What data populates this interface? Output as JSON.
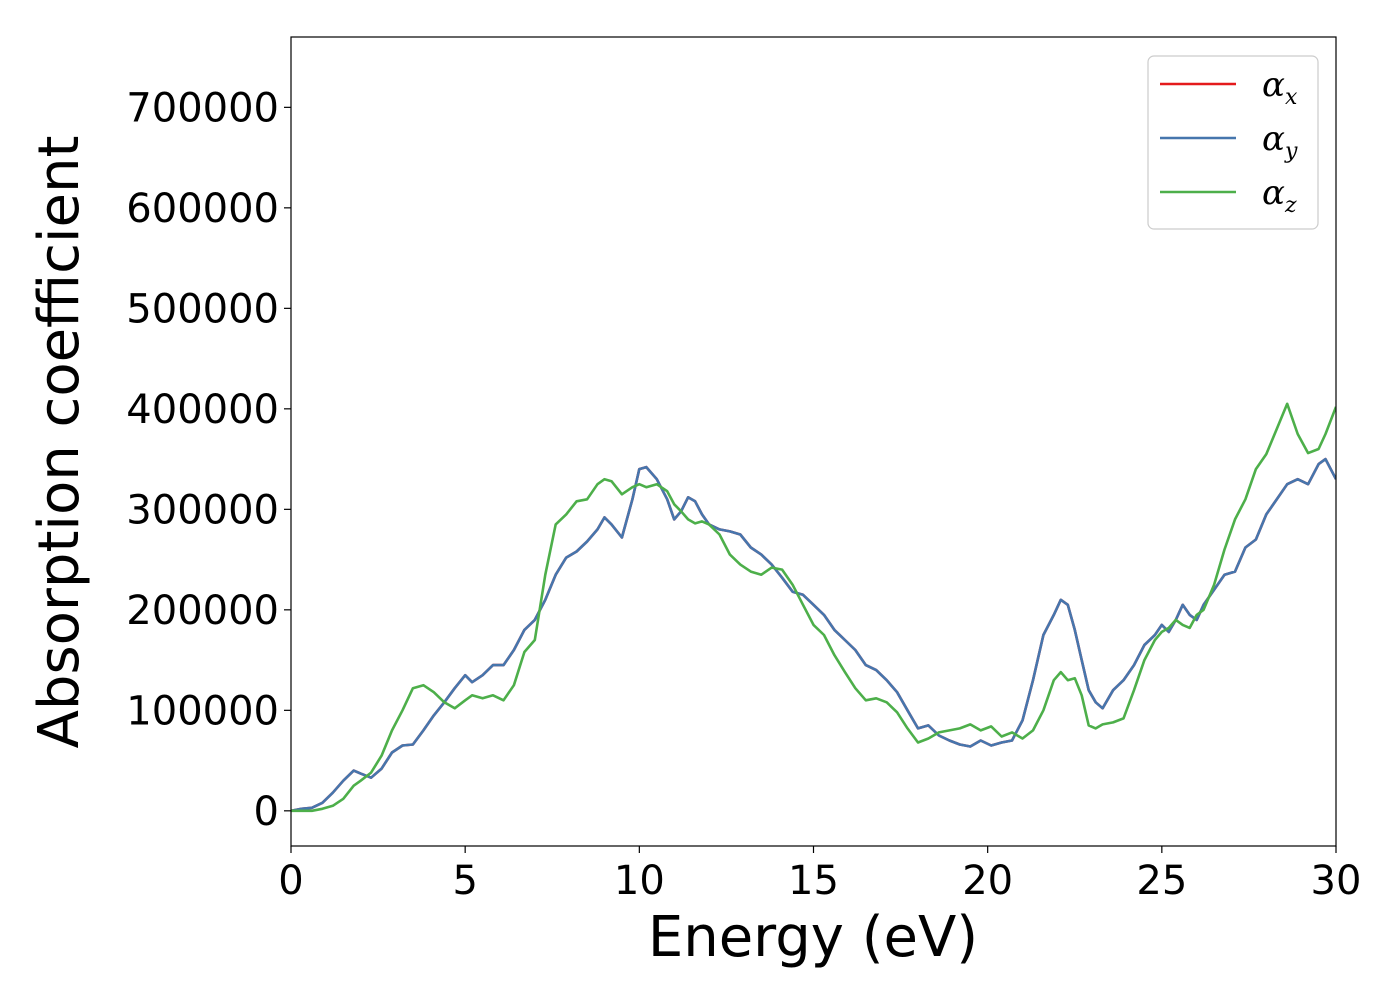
{
  "chart_data": {
    "type": "line",
    "title": "",
    "xlabel": "Energy (eV)",
    "ylabel": "Absorption coefficient",
    "xlim": [
      0,
      30
    ],
    "ylim": [
      -35000,
      770000
    ],
    "xticks": [
      0,
      5,
      10,
      15,
      20,
      25,
      30
    ],
    "yticks": [
      0,
      100000,
      200000,
      300000,
      400000,
      500000,
      600000,
      700000
    ],
    "grid": false,
    "legend_position": "top-right",
    "series": [
      {
        "name": "α_x",
        "legend_main": "α",
        "legend_sub": "x",
        "color": "#e41a1c",
        "x": [
          0,
          0.3,
          0.6,
          0.9,
          1.2,
          1.5,
          1.8,
          2.0,
          2.3,
          2.6,
          2.9,
          3.2,
          3.5,
          3.8,
          4.1,
          4.4,
          4.7,
          5.0,
          5.2,
          5.5,
          5.8,
          6.1,
          6.4,
          6.7,
          7.0,
          7.3,
          7.6,
          7.9,
          8.2,
          8.5,
          8.8,
          9.0,
          9.2,
          9.5,
          9.8,
          10.0,
          10.2,
          10.5,
          10.8,
          11.0,
          11.2,
          11.4,
          11.6,
          11.8,
          12.0,
          12.3,
          12.6,
          12.9,
          13.2,
          13.5,
          13.8,
          14.1,
          14.4,
          14.7,
          15.0,
          15.3,
          15.6,
          15.9,
          16.2,
          16.5,
          16.8,
          17.1,
          17.4,
          17.7,
          18.0,
          18.3,
          18.6,
          18.9,
          19.2,
          19.5,
          19.8,
          20.1,
          20.4,
          20.7,
          21.0,
          21.3,
          21.6,
          21.9,
          22.1,
          22.3,
          22.5,
          22.7,
          22.9,
          23.1,
          23.3,
          23.6,
          23.9,
          24.2,
          24.5,
          24.8,
          25.0,
          25.2,
          25.4,
          25.6,
          25.8,
          26.0,
          26.2,
          26.5,
          26.8,
          27.1,
          27.4,
          27.7,
          28.0,
          28.3,
          28.6,
          28.9,
          29.2,
          29.5,
          29.7,
          30.0
        ],
        "y": [
          0,
          2000,
          3000,
          8000,
          18000,
          30000,
          40000,
          37000,
          33000,
          42000,
          58000,
          65000,
          66000,
          80000,
          95000,
          108000,
          122000,
          135000,
          128000,
          135000,
          145000,
          145000,
          160000,
          180000,
          190000,
          210000,
          235000,
          252000,
          258000,
          268000,
          280000,
          292000,
          285000,
          272000,
          310000,
          340000,
          342000,
          330000,
          310000,
          290000,
          298000,
          312000,
          308000,
          295000,
          285000,
          280000,
          278000,
          275000,
          262000,
          255000,
          245000,
          232000,
          218000,
          215000,
          205000,
          195000,
          180000,
          170000,
          160000,
          145000,
          140000,
          130000,
          118000,
          100000,
          82000,
          85000,
          75000,
          70000,
          66000,
          64000,
          70000,
          65000,
          68000,
          70000,
          90000,
          130000,
          175000,
          195000,
          210000,
          205000,
          180000,
          150000,
          120000,
          108000,
          102000,
          120000,
          130000,
          145000,
          165000,
          175000,
          185000,
          178000,
          190000,
          205000,
          195000,
          190000,
          205000,
          220000,
          235000,
          238000,
          262000,
          270000,
          295000,
          310000,
          325000,
          330000,
          325000,
          345000,
          350000,
          330000
        ]
      },
      {
        "name": "α_y",
        "legend_main": "α",
        "legend_sub": "y",
        "color": "#4676ad",
        "x": [
          0,
          0.3,
          0.6,
          0.9,
          1.2,
          1.5,
          1.8,
          2.0,
          2.3,
          2.6,
          2.9,
          3.2,
          3.5,
          3.8,
          4.1,
          4.4,
          4.7,
          5.0,
          5.2,
          5.5,
          5.8,
          6.1,
          6.4,
          6.7,
          7.0,
          7.3,
          7.6,
          7.9,
          8.2,
          8.5,
          8.8,
          9.0,
          9.2,
          9.5,
          9.8,
          10.0,
          10.2,
          10.5,
          10.8,
          11.0,
          11.2,
          11.4,
          11.6,
          11.8,
          12.0,
          12.3,
          12.6,
          12.9,
          13.2,
          13.5,
          13.8,
          14.1,
          14.4,
          14.7,
          15.0,
          15.3,
          15.6,
          15.9,
          16.2,
          16.5,
          16.8,
          17.1,
          17.4,
          17.7,
          18.0,
          18.3,
          18.6,
          18.9,
          19.2,
          19.5,
          19.8,
          20.1,
          20.4,
          20.7,
          21.0,
          21.3,
          21.6,
          21.9,
          22.1,
          22.3,
          22.5,
          22.7,
          22.9,
          23.1,
          23.3,
          23.6,
          23.9,
          24.2,
          24.5,
          24.8,
          25.0,
          25.2,
          25.4,
          25.6,
          25.8,
          26.0,
          26.2,
          26.5,
          26.8,
          27.1,
          27.4,
          27.7,
          28.0,
          28.3,
          28.6,
          28.9,
          29.2,
          29.5,
          29.7,
          30.0
        ],
        "y": [
          0,
          2000,
          3000,
          8000,
          18000,
          30000,
          40000,
          37000,
          33000,
          42000,
          58000,
          65000,
          66000,
          80000,
          95000,
          108000,
          122000,
          135000,
          128000,
          135000,
          145000,
          145000,
          160000,
          180000,
          190000,
          210000,
          235000,
          252000,
          258000,
          268000,
          280000,
          292000,
          285000,
          272000,
          310000,
          340000,
          342000,
          330000,
          310000,
          290000,
          298000,
          312000,
          308000,
          295000,
          285000,
          280000,
          278000,
          275000,
          262000,
          255000,
          245000,
          232000,
          218000,
          215000,
          205000,
          195000,
          180000,
          170000,
          160000,
          145000,
          140000,
          130000,
          118000,
          100000,
          82000,
          85000,
          75000,
          70000,
          66000,
          64000,
          70000,
          65000,
          68000,
          70000,
          90000,
          130000,
          175000,
          195000,
          210000,
          205000,
          180000,
          150000,
          120000,
          108000,
          102000,
          120000,
          130000,
          145000,
          165000,
          175000,
          185000,
          178000,
          190000,
          205000,
          195000,
          190000,
          205000,
          220000,
          235000,
          238000,
          262000,
          270000,
          295000,
          310000,
          325000,
          330000,
          325000,
          345000,
          350000,
          330000
        ]
      },
      {
        "name": "α_z",
        "legend_main": "α",
        "legend_sub": "z",
        "color": "#4daf4a",
        "x": [
          0,
          0.3,
          0.6,
          0.9,
          1.2,
          1.5,
          1.8,
          2.0,
          2.3,
          2.6,
          2.9,
          3.2,
          3.5,
          3.8,
          4.1,
          4.4,
          4.7,
          5.0,
          5.2,
          5.5,
          5.8,
          6.1,
          6.4,
          6.7,
          7.0,
          7.3,
          7.6,
          7.9,
          8.2,
          8.5,
          8.8,
          9.0,
          9.2,
          9.5,
          9.8,
          10.0,
          10.2,
          10.5,
          10.8,
          11.0,
          11.2,
          11.4,
          11.6,
          11.8,
          12.0,
          12.3,
          12.6,
          12.9,
          13.2,
          13.5,
          13.8,
          14.1,
          14.4,
          14.7,
          15.0,
          15.3,
          15.6,
          15.9,
          16.2,
          16.5,
          16.8,
          17.1,
          17.4,
          17.7,
          18.0,
          18.3,
          18.6,
          18.9,
          19.2,
          19.5,
          19.8,
          20.1,
          20.4,
          20.7,
          21.0,
          21.3,
          21.6,
          21.9,
          22.1,
          22.3,
          22.5,
          22.7,
          22.9,
          23.1,
          23.3,
          23.6,
          23.9,
          24.2,
          24.5,
          24.8,
          25.0,
          25.2,
          25.4,
          25.6,
          25.8,
          26.0,
          26.2,
          26.5,
          26.8,
          27.1,
          27.4,
          27.7,
          28.0,
          28.3,
          28.6,
          28.9,
          29.2,
          29.5,
          29.7,
          30.0
        ],
        "y": [
          0,
          0,
          0,
          2000,
          5000,
          12000,
          25000,
          30000,
          38000,
          55000,
          80000,
          100000,
          122000,
          125000,
          118000,
          108000,
          102000,
          110000,
          115000,
          112000,
          115000,
          110000,
          125000,
          158000,
          170000,
          235000,
          285000,
          295000,
          308000,
          310000,
          325000,
          330000,
          328000,
          315000,
          322000,
          325000,
          322000,
          325000,
          318000,
          305000,
          298000,
          290000,
          286000,
          288000,
          285000,
          275000,
          255000,
          245000,
          238000,
          235000,
          242000,
          240000,
          225000,
          205000,
          185000,
          175000,
          155000,
          138000,
          122000,
          110000,
          112000,
          108000,
          98000,
          82000,
          68000,
          72000,
          78000,
          80000,
          82000,
          86000,
          80000,
          84000,
          74000,
          78000,
          72000,
          80000,
          100000,
          130000,
          138000,
          130000,
          132000,
          115000,
          85000,
          82000,
          86000,
          88000,
          92000,
          120000,
          150000,
          170000,
          178000,
          182000,
          190000,
          185000,
          182000,
          195000,
          200000,
          225000,
          260000,
          290000,
          310000,
          340000,
          355000,
          380000,
          405000,
          375000,
          356000,
          360000,
          375000,
          402000
        ]
      }
    ]
  }
}
